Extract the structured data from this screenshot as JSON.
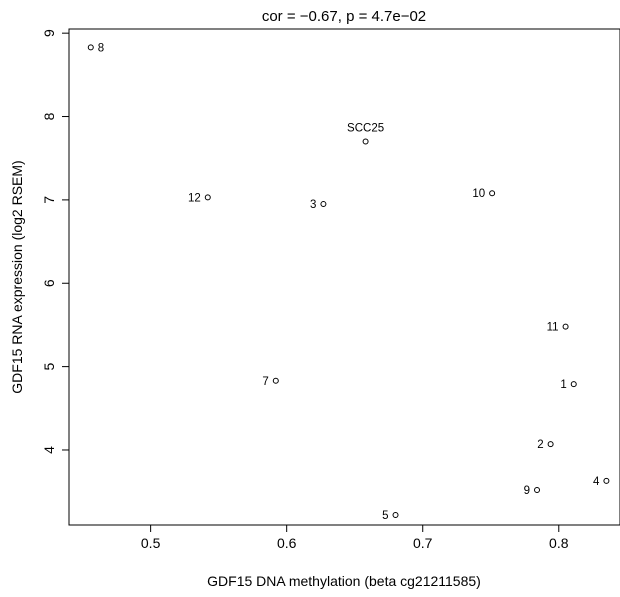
{
  "chart_data": {
    "type": "scatter",
    "title": "cor = −0.67, p = 4.7e−02",
    "xlabel": "GDF15 DNA methylation (beta cg21211585)",
    "ylabel": "GDF15 RNA expression (log2 RSEM)",
    "xlim": [
      0.44,
      0.845
    ],
    "ylim": [
      3.1,
      9.05
    ],
    "xticks": [
      "0.5",
      "0.6",
      "0.7",
      "0.8"
    ],
    "xtick_values": [
      0.5,
      0.6,
      0.7,
      0.8
    ],
    "yticks": [
      "4",
      "5",
      "6",
      "7",
      "8",
      "9"
    ],
    "ytick_values": [
      4,
      5,
      6,
      7,
      8,
      9
    ],
    "grid": false,
    "points": [
      {
        "label": "8",
        "x": 0.456,
        "y": 8.83,
        "label_side": "right"
      },
      {
        "label": "SCC25",
        "x": 0.658,
        "y": 7.7,
        "label_side": "above"
      },
      {
        "label": "12",
        "x": 0.542,
        "y": 7.03,
        "label_side": "left"
      },
      {
        "label": "3",
        "x": 0.627,
        "y": 6.95,
        "label_side": "left"
      },
      {
        "label": "10",
        "x": 0.751,
        "y": 7.08,
        "label_side": "left"
      },
      {
        "label": "11",
        "x": 0.805,
        "y": 5.48,
        "label_side": "left"
      },
      {
        "label": "7",
        "x": 0.592,
        "y": 4.83,
        "label_side": "left"
      },
      {
        "label": "1",
        "x": 0.811,
        "y": 4.79,
        "label_side": "left"
      },
      {
        "label": "2",
        "x": 0.794,
        "y": 4.07,
        "label_side": "left"
      },
      {
        "label": "4",
        "x": 0.835,
        "y": 3.63,
        "label_side": "left"
      },
      {
        "label": "9",
        "x": 0.784,
        "y": 3.52,
        "label_side": "left"
      },
      {
        "label": "5",
        "x": 0.68,
        "y": 3.22,
        "label_side": "left"
      }
    ]
  }
}
